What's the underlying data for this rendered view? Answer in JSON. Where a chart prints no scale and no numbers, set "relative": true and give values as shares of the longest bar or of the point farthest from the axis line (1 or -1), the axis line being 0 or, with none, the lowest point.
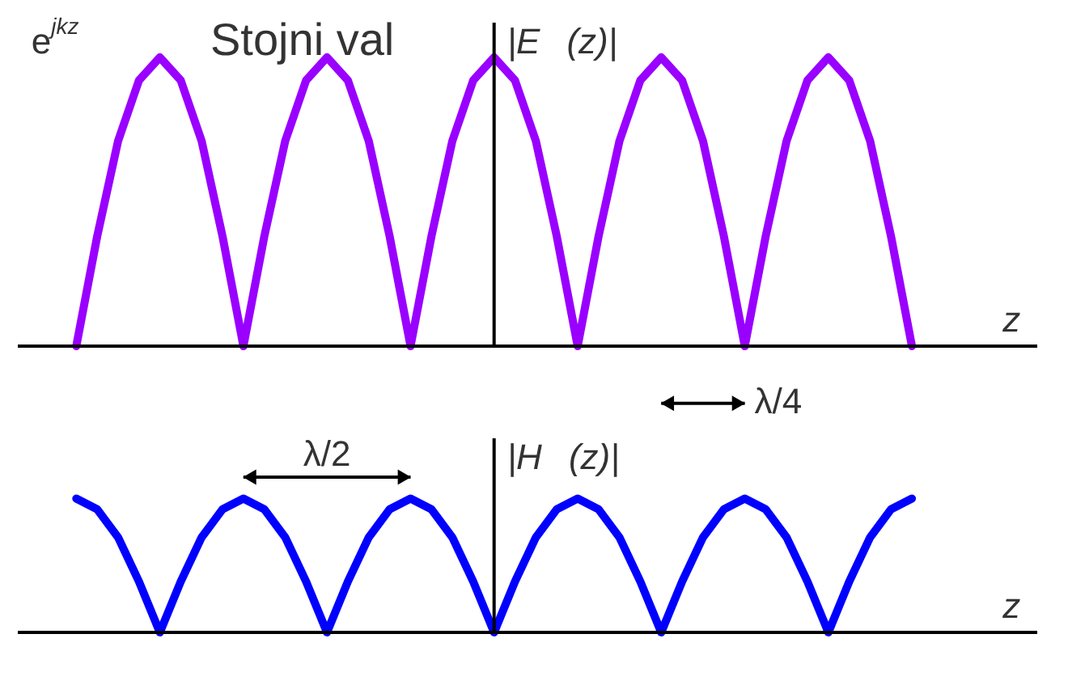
{
  "chart_data": [
    {
      "type": "line",
      "title": "Stojni val",
      "ylabel": "|E⃗(z)|",
      "xlabel": "z",
      "relative": true,
      "tick_labels": false,
      "grid": false,
      "legend": false,
      "marker": "none",
      "line_style": "solid",
      "categories": [
        null,
        null,
        null,
        null,
        null,
        null,
        null,
        null,
        null,
        null,
        null,
        null,
        null,
        null,
        null,
        null,
        null,
        null,
        null,
        null,
        null,
        null,
        null,
        null,
        null,
        null,
        null,
        null,
        null,
        null,
        null,
        null,
        null,
        null,
        null,
        null,
        null,
        null,
        null,
        null,
        null
      ],
      "series": [
        {
          "color": "#9900ff",
          "values": [
            0,
            0.38,
            0.71,
            0.92,
            1,
            0.92,
            0.71,
            0.38,
            0,
            0.38,
            0.71,
            0.92,
            1,
            0.92,
            0.71,
            0.38,
            0,
            0.38,
            0.71,
            0.92,
            1,
            0.92,
            0.71,
            0.38,
            0,
            0.38,
            0.71,
            0.92,
            1,
            0.92,
            0.71,
            0.38,
            0,
            0.38,
            0.71,
            0.92,
            1,
            0.92,
            0.71,
            0.38,
            0
          ]
        }
      ],
      "annotations": [
        "e$^{jkz}$"
      ]
    },
    {
      "type": "line",
      "ylabel": "|H⃗(z)|",
      "xlabel": "z",
      "relative": true,
      "tick_labels": false,
      "grid": false,
      "legend": false,
      "marker": "none",
      "line_style": "solid",
      "categories": [
        null,
        null,
        null,
        null,
        null,
        null,
        null,
        null,
        null,
        null,
        null,
        null,
        null,
        null,
        null,
        null,
        null,
        null,
        null,
        null,
        null,
        null,
        null,
        null,
        null,
        null,
        null,
        null,
        null,
        null,
        null,
        null,
        null,
        null,
        null,
        null,
        null,
        null,
        null,
        null,
        null
      ],
      "series": [
        {
          "color": "#0000ff",
          "values": [
            1,
            0.92,
            0.71,
            0.38,
            0,
            0.38,
            0.71,
            0.92,
            1,
            0.92,
            0.71,
            0.38,
            0,
            0.38,
            0.71,
            0.92,
            1,
            0.92,
            0.71,
            0.38,
            0,
            0.38,
            0.71,
            0.92,
            1,
            0.92,
            0.71,
            0.38,
            0,
            0.38,
            0.71,
            0.92,
            1,
            0.92,
            0.71,
            0.38,
            0,
            0.38,
            0.71,
            0.92,
            1
          ]
        }
      ],
      "annotations": [
        "λ/2",
        "λ/4"
      ]
    }
  ]
}
